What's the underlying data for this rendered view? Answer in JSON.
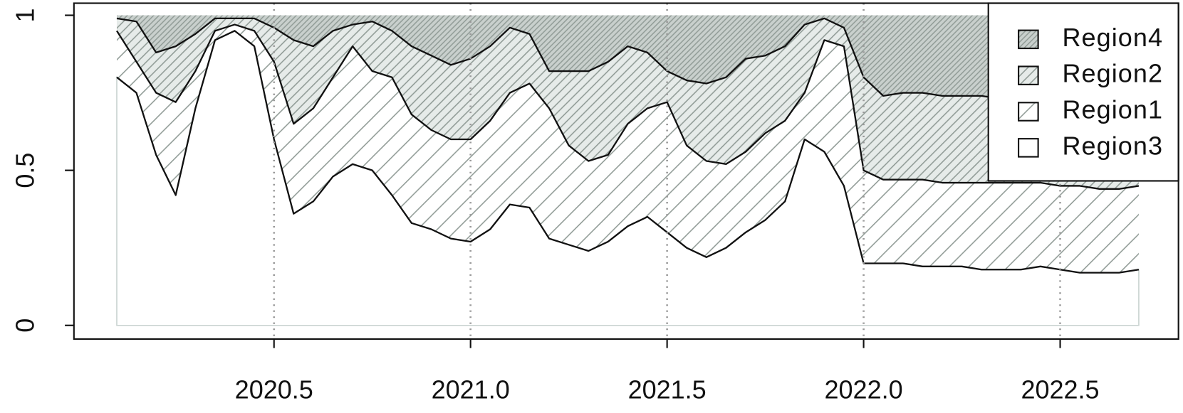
{
  "chart_data": {
    "type": "stacked_area",
    "x": [
      2020.1,
      2020.15,
      2020.2,
      2020.25,
      2020.3,
      2020.35,
      2020.4,
      2020.45,
      2020.5,
      2020.55,
      2020.6,
      2020.65,
      2020.7,
      2020.75,
      2020.8,
      2020.85,
      2020.9,
      2020.95,
      2021.0,
      2021.05,
      2021.1,
      2021.15,
      2021.2,
      2021.25,
      2021.3,
      2021.35,
      2021.4,
      2021.45,
      2021.5,
      2021.55,
      2021.6,
      2021.65,
      2021.7,
      2021.75,
      2021.8,
      2021.85,
      2021.9,
      2021.95,
      2022.0,
      2022.05,
      2022.1,
      2022.15,
      2022.2,
      2022.25,
      2022.3,
      2022.35,
      2022.4,
      2022.45,
      2022.5,
      2022.55,
      2022.6,
      2022.65,
      2022.7
    ],
    "series": [
      {
        "name": "Region4",
        "color": "#c9d0cd",
        "values": [
          0.01,
          0.02,
          0.12,
          0.1,
          0.06,
          0.01,
          0.01,
          0.01,
          0.04,
          0.08,
          0.1,
          0.05,
          0.03,
          0.02,
          0.05,
          0.1,
          0.13,
          0.16,
          0.14,
          0.1,
          0.04,
          0.06,
          0.18,
          0.18,
          0.18,
          0.15,
          0.1,
          0.12,
          0.18,
          0.21,
          0.22,
          0.2,
          0.14,
          0.13,
          0.1,
          0.03,
          0.01,
          0.04,
          0.2,
          0.26,
          0.25,
          0.25,
          0.26,
          0.26,
          0.26,
          0.27,
          0.27,
          0.27,
          0.27,
          0.27,
          0.27,
          0.27,
          0.27
        ]
      },
      {
        "name": "Region2",
        "color": "#e6ebe9",
        "values": [
          0.04,
          0.13,
          0.13,
          0.18,
          0.12,
          0.04,
          0.02,
          0.04,
          0.11,
          0.27,
          0.2,
          0.15,
          0.07,
          0.16,
          0.15,
          0.22,
          0.24,
          0.24,
          0.26,
          0.24,
          0.21,
          0.16,
          0.12,
          0.24,
          0.29,
          0.3,
          0.25,
          0.18,
          0.1,
          0.21,
          0.25,
          0.28,
          0.3,
          0.25,
          0.24,
          0.22,
          0.07,
          0.06,
          0.3,
          0.27,
          0.28,
          0.28,
          0.28,
          0.28,
          0.28,
          0.27,
          0.27,
          0.27,
          0.28,
          0.28,
          0.29,
          0.29,
          0.28
        ]
      },
      {
        "name": "Region1",
        "color": "#ffffff",
        "values": [
          0.15,
          0.1,
          0.2,
          0.3,
          0.12,
          0.03,
          0.02,
          0.05,
          0.25,
          0.29,
          0.3,
          0.32,
          0.38,
          0.32,
          0.38,
          0.35,
          0.32,
          0.32,
          0.33,
          0.35,
          0.36,
          0.4,
          0.42,
          0.32,
          0.29,
          0.28,
          0.33,
          0.35,
          0.42,
          0.33,
          0.31,
          0.27,
          0.26,
          0.28,
          0.26,
          0.15,
          0.36,
          0.45,
          0.3,
          0.27,
          0.27,
          0.28,
          0.27,
          0.27,
          0.28,
          0.28,
          0.28,
          0.27,
          0.27,
          0.28,
          0.27,
          0.27,
          0.27
        ]
      },
      {
        "name": "Region3",
        "color": "#ffffff",
        "values": [
          0.8,
          0.75,
          0.55,
          0.42,
          0.7,
          0.92,
          0.95,
          0.9,
          0.6,
          0.36,
          0.4,
          0.48,
          0.52,
          0.5,
          0.42,
          0.33,
          0.31,
          0.28,
          0.27,
          0.31,
          0.39,
          0.38,
          0.28,
          0.26,
          0.24,
          0.27,
          0.32,
          0.35,
          0.3,
          0.25,
          0.22,
          0.25,
          0.3,
          0.34,
          0.4,
          0.6,
          0.56,
          0.45,
          0.2,
          0.2,
          0.2,
          0.19,
          0.19,
          0.19,
          0.18,
          0.18,
          0.18,
          0.19,
          0.18,
          0.17,
          0.17,
          0.17,
          0.18
        ]
      }
    ],
    "xlim": [
      2019.991,
      2022.801
    ],
    "ylim": [
      -0.044,
      1.039
    ],
    "xticks": [
      2020.5,
      {
        "value": 2021,
        "label": "2021.0"
      },
      2021.5,
      {
        "value": 2022,
        "label": "2022.0"
      },
      2022.5
    ],
    "yticks": [
      0,
      0.5,
      1
    ],
    "grid": true,
    "legend": "topright"
  }
}
